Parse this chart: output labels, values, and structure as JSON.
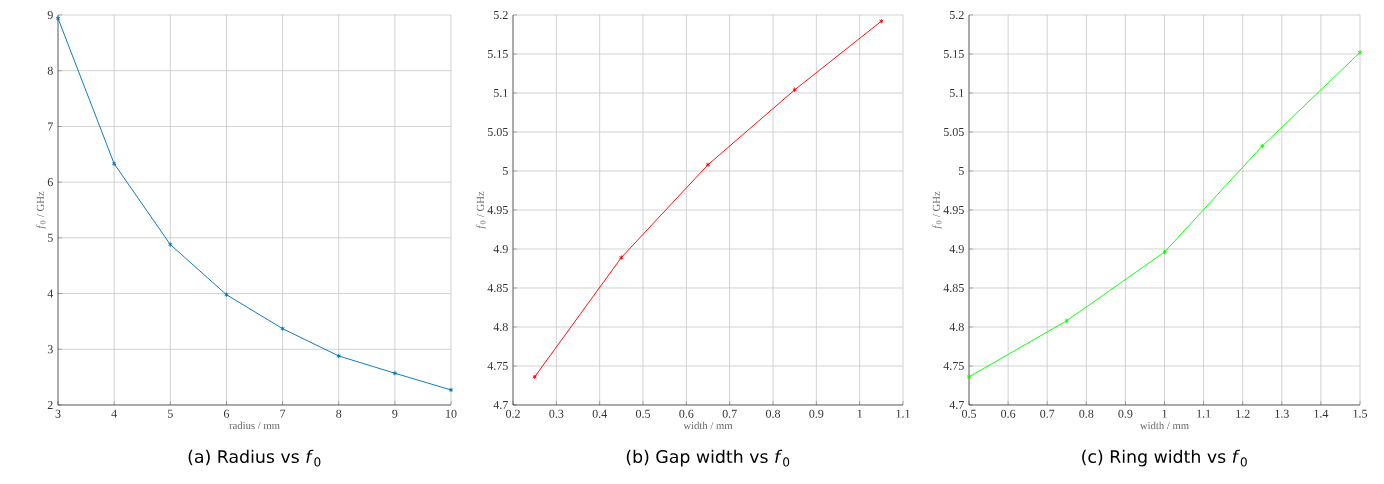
{
  "chart_data": [
    {
      "type": "line",
      "title": "(a) Radius vs *f*$_{0}$",
      "xlabel": "radius / mm",
      "ylabel": "*f*$_{0}$ / GHz",
      "x": [
        3,
        4,
        5,
        6,
        7,
        8,
        9,
        10
      ],
      "values": [
        8.94,
        6.33,
        4.88,
        3.98,
        3.37,
        2.88,
        2.57,
        2.27
      ],
      "color": "#0072bd",
      "xlim": [
        3,
        10
      ],
      "ylim": [
        2,
        9
      ],
      "xticks": [
        3,
        4,
        5,
        6,
        7,
        8,
        9,
        10
      ],
      "yticks": [
        2,
        3,
        4,
        5,
        6,
        7,
        8,
        9
      ],
      "grid": true,
      "marker": "cross",
      "line_style": "solid"
    },
    {
      "type": "line",
      "title": "(b) Gap width vs *f*$_{0}$",
      "xlabel": "width / mm",
      "ylabel": "*f*$_{0}$ / GHz",
      "x": [
        0.25,
        0.45,
        0.65,
        0.85,
        1.05
      ],
      "values": [
        4.736,
        4.889,
        5.008,
        5.104,
        5.192
      ],
      "color": "#ff0000",
      "xlim": [
        0.2,
        1.1
      ],
      "ylim": [
        4.7,
        5.2
      ],
      "xticks": [
        0.2,
        0.3,
        0.4,
        0.5,
        0.6,
        0.7,
        0.8,
        0.9,
        1,
        1.1
      ],
      "yticks": [
        4.7,
        4.75,
        4.8,
        4.85,
        4.9,
        4.95,
        5,
        5.05,
        5.1,
        5.15,
        5.2
      ],
      "grid": true,
      "marker": "cross",
      "line_style": "solid"
    },
    {
      "type": "line",
      "title": "(c) Ring width vs *f*$_{0}$",
      "xlabel": "width / mm",
      "ylabel": "*f*$_{0}$ / GHz",
      "x": [
        0.5,
        0.75,
        1,
        1.25,
        1.5
      ],
      "values": [
        4.736,
        4.808,
        4.896,
        5.032,
        5.152
      ],
      "color": "#00ff00",
      "xlim": [
        0.5,
        1.5
      ],
      "ylim": [
        4.7,
        5.2
      ],
      "xticks": [
        0.5,
        0.6,
        0.7,
        0.8,
        0.9,
        1,
        1.1,
        1.2,
        1.3,
        1.4,
        1.5
      ],
      "yticks": [
        4.7,
        4.75,
        4.8,
        4.85,
        4.9,
        4.95,
        5,
        5.05,
        5.1,
        5.15,
        5.2
      ],
      "grid": true,
      "marker": "cross",
      "line_style": "solid"
    }
  ]
}
